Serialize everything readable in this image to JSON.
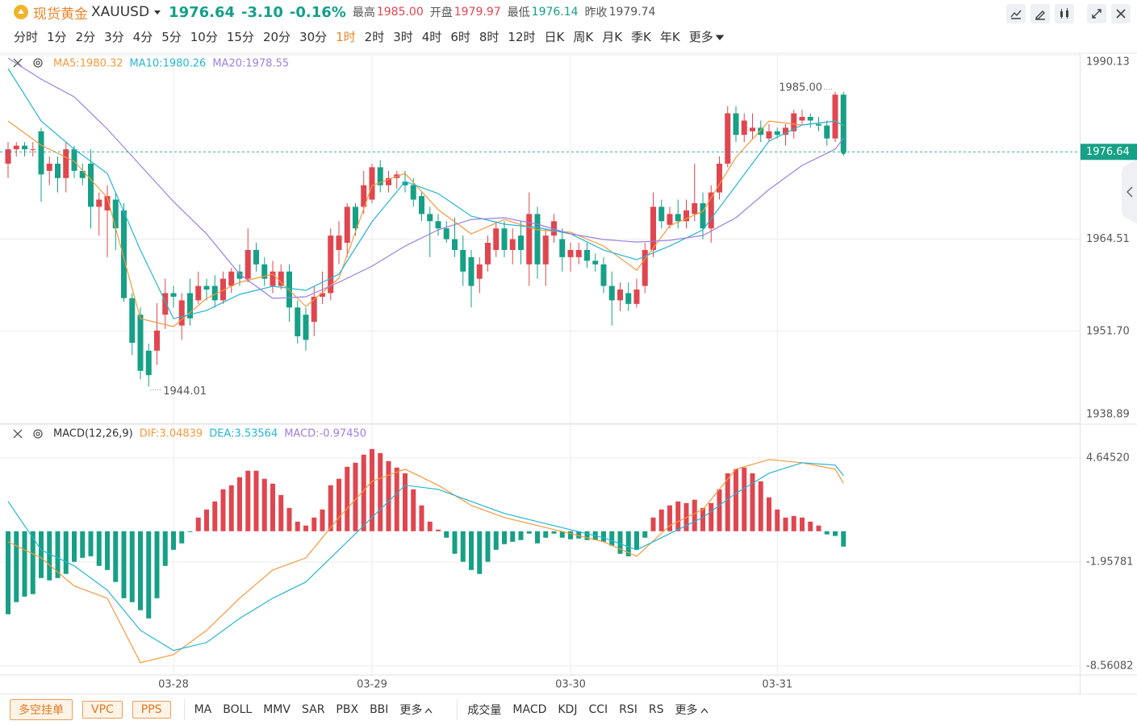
{
  "header": {
    "symbol_name": "现货黄金",
    "symbol": "XAUUSD",
    "price": "1976.64",
    "change": "-3.10",
    "change_pct": "-0.16%",
    "high_label": "最高",
    "high": "1985.00",
    "open_label": "开盘",
    "open": "1979.97",
    "low_label": "最低",
    "low": "1976.14",
    "prev_label": "昨收",
    "prev": "1979.74"
  },
  "periods": [
    "分时",
    "1分",
    "2分",
    "3分",
    "4分",
    "5分",
    "10分",
    "15分",
    "20分",
    "30分",
    "1时",
    "2时",
    "3时",
    "4时",
    "6时",
    "8时",
    "12时",
    "日K",
    "周K",
    "月K",
    "季K",
    "年K"
  ],
  "periods_more": "更多",
  "active_period_index": 10,
  "toolbar": {
    "buttons": [
      "多空挂单",
      "VPC",
      "PPS"
    ],
    "main_indicators": [
      "MA",
      "BOLL",
      "MMV",
      "SAR",
      "PBX",
      "BBI"
    ],
    "main_more": "更多",
    "sub_indicators": [
      "成交量",
      "MACD",
      "KDJ",
      "CCI",
      "RSI",
      "RS"
    ],
    "sub_more": "更多"
  },
  "chart_data": [
    {
      "type": "candlestick",
      "up_color": "#e0464f",
      "down_color": "#16a086",
      "ylim": [
        1938.89,
        1990.13
      ],
      "yticks": [
        1938.89,
        {
          "value": 1951.7,
          "label": "1951.70"
        },
        1964.51,
        1990.13
      ],
      "open": [
        1975,
        1977,
        1977.5,
        1977,
        1979.5,
        1974,
        1975,
        1973,
        1977,
        1974,
        1975,
        1969,
        1968.5,
        1970,
        1968.5,
        1956.3,
        1954,
        1949,
        1949,
        1954,
        1957,
        1952.5,
        1957,
        1956,
        1958,
        1958,
        1956,
        1958,
        1960,
        1959,
        1963,
        1961,
        1958,
        1958,
        1960,
        1955,
        1954,
        1953,
        1956.5,
        1957,
        1963,
        1964,
        1969,
        1969,
        1970,
        1974.5,
        1972,
        1973,
        1972.5,
        1972,
        1970.5,
        1968,
        1967,
        1966,
        1964.5,
        1963,
        1962,
        1959,
        1961,
        1963,
        1966,
        1963,
        1965,
        1961,
        1968,
        1961,
        1965,
        1964.5,
        1962,
        1962,
        1963,
        1961.5,
        1961,
        1958,
        1956,
        1957,
        1955.5,
        1958,
        1963,
        1969,
        1966.5,
        1968,
        1967,
        1968,
        1969.5,
        1966,
        1971,
        1975,
        1982,
        1979,
        1979.5,
        1980,
        1978.5,
        1979.5,
        1979,
        1979.5,
        1981,
        1981.5,
        1980.5,
        1980.3,
        1978.5,
        1984.6
      ],
      "high": [
        1978,
        1978,
        1978,
        1978,
        1980,
        1976,
        1976,
        1978,
        1977.5,
        1975,
        1977,
        1971,
        1972,
        1971,
        1969.5,
        1957,
        1955,
        1950,
        1955.6,
        1959,
        1958,
        1957,
        1959,
        1960,
        1959,
        1959.5,
        1960,
        1960.5,
        1961,
        1966,
        1964,
        1962,
        1961.5,
        1961,
        1961,
        1956,
        1955,
        1958,
        1960,
        1966,
        1967,
        1969.5,
        1969.5,
        1974,
        1975,
        1975.5,
        1974,
        1974,
        1974,
        1973,
        1971,
        1969,
        1968,
        1967,
        1967.5,
        1965,
        1963,
        1962,
        1965,
        1967,
        1967,
        1966,
        1967,
        1971,
        1969,
        1966,
        1968,
        1966,
        1964,
        1964,
        1964,
        1962.5,
        1962,
        1960,
        1958.5,
        1958.5,
        1959,
        1964,
        1971,
        1970,
        1969,
        1970,
        1970,
        1975,
        1971,
        1972,
        1976,
        1983,
        1983,
        1982,
        1982,
        1981,
        1980.5,
        1980,
        1980.5,
        1982.5,
        1982.5,
        1982,
        1981.5,
        1981,
        1985,
        1985
      ],
      "low": [
        1973,
        1976,
        1976,
        1976,
        1969.7,
        1972,
        1971,
        1971,
        1973,
        1972,
        1966,
        1965,
        1962,
        1963,
        1955.8,
        1948.4,
        1945,
        1944.01,
        1947,
        1952,
        1955,
        1950.5,
        1952.5,
        1955.5,
        1956,
        1955,
        1955.5,
        1957,
        1958,
        1958.5,
        1960,
        1958,
        1957,
        1957.5,
        1953,
        1950,
        1949,
        1951,
        1955.5,
        1956,
        1961,
        1962,
        1965,
        1968,
        1969.5,
        1971,
        1971,
        1971.5,
        1971,
        1969,
        1967,
        1962,
        1965,
        1964,
        1962,
        1958,
        1955,
        1957,
        1960,
        1962,
        1962,
        1961,
        1961,
        1958,
        1959,
        1958,
        1964,
        1960,
        1960,
        1961,
        1960.5,
        1960,
        1957,
        1952.5,
        1954.5,
        1954.5,
        1955,
        1957,
        1962,
        1966,
        1966,
        1966,
        1966,
        1967,
        1964.5,
        1964,
        1970,
        1974.5,
        1978,
        1978,
        1978.5,
        1978,
        1978,
        1978.5,
        1977.5,
        1978.5,
        1980.5,
        1980,
        1979.5,
        1977.5,
        1978,
        1976.14
      ],
      "close": [
        1977,
        1977.5,
        1977,
        1977,
        1973.5,
        1975,
        1973,
        1977,
        1974,
        1973,
        1969,
        1970,
        1970.5,
        1966,
        1956.3,
        1950.1,
        1946.2,
        1945.6,
        1951.8,
        1957,
        1956.5,
        1956,
        1953.5,
        1958,
        1957.5,
        1956,
        1959,
        1960,
        1959,
        1963,
        1961,
        1959,
        1960,
        1960,
        1955,
        1951,
        1950.5,
        1956.5,
        1957,
        1965,
        1965,
        1969,
        1966,
        1972,
        1974.5,
        1972,
        1973,
        1973.5,
        1972,
        1970,
        1968,
        1967,
        1966,
        1964.5,
        1963,
        1960,
        1958,
        1961,
        1964,
        1966,
        1963,
        1964.5,
        1963,
        1968,
        1961,
        1965,
        1967,
        1962,
        1963,
        1963,
        1961.5,
        1961,
        1958,
        1956,
        1957.5,
        1955.5,
        1957.5,
        1963,
        1969,
        1967,
        1968,
        1967,
        1968.5,
        1969.5,
        1966,
        1971,
        1975,
        1982,
        1979,
        1981,
        1980,
        1979,
        1979.5,
        1979,
        1980,
        1982,
        1981.5,
        1981,
        1980.3,
        1978.5,
        1984.6,
        1976.64
      ],
      "series": [
        {
          "name": "MA5:1980.32",
          "color": "#f5993d",
          "x": [
            0,
            4,
            8,
            12,
            16,
            20,
            24,
            28,
            32,
            36,
            40,
            44,
            48,
            52,
            56,
            60,
            64,
            68,
            72,
            76,
            80,
            84,
            88,
            92,
            96,
            100,
            101
          ],
          "values": [
            1980.93,
            1977.57,
            1975.32,
            1970.28,
            1953.46,
            1952.34,
            1956.27,
            1958.51,
            1959.63,
            1955.15,
            1959.07,
            1971.96,
            1973.64,
            1968.6,
            1965.24,
            1967.25,
            1965.8,
            1965.46,
            1963.55,
            1960.19,
            1966.36,
            1968.37,
            1975.89,
            1980.93,
            1980.37,
            1980.93,
            1980.32
          ]
        },
        {
          "name": "MA10:1980.26",
          "color": "#26b5d4",
          "x": [
            0,
            4,
            8,
            12,
            16,
            20,
            24,
            28,
            32,
            36,
            40,
            44,
            48,
            52,
            56,
            60,
            64,
            68,
            72,
            76,
            80,
            84,
            88,
            92,
            96,
            100,
            101
          ],
          "values": [
            1988.22,
            1980.93,
            1977.01,
            1973.64,
            1962.99,
            1953.46,
            1954.59,
            1956.83,
            1957.95,
            1957.39,
            1959.63,
            1966.92,
            1972.52,
            1970.84,
            1967.7,
            1966.58,
            1966.13,
            1965.24,
            1962.99,
            1961.65,
            1963.55,
            1965.8,
            1971.96,
            1978.13,
            1980.37,
            1980.93,
            1980.26
          ]
        },
        {
          "name": "MA20:1978.55",
          "color": "#9d7fe0",
          "x": [
            0,
            4,
            8,
            12,
            16,
            20,
            24,
            28,
            32,
            36,
            40,
            44,
            48,
            52,
            56,
            60,
            64,
            68,
            72,
            76,
            80,
            84,
            88,
            92,
            96,
            100,
            101
          ],
          "values": [
            1989.67,
            1986.76,
            1984.29,
            1979.81,
            1974.76,
            1969.72,
            1965.24,
            1959.63,
            1956.27,
            1956.49,
            1958.51,
            1960.75,
            1963.55,
            1965.8,
            1967.25,
            1967.48,
            1966.58,
            1965.24,
            1964.45,
            1964.11,
            1964.34,
            1965.01,
            1967.48,
            1971.4,
            1974.76,
            1977.01,
            1978.55
          ]
        }
      ],
      "last_price": {
        "value": 1976.64,
        "label": "1976.64",
        "color": "#16a086"
      },
      "high_label": {
        "value": 1985,
        "label": "1985.00"
      },
      "low_label": {
        "value": 1944.01,
        "label": "1944.01"
      }
    },
    {
      "type": "macd",
      "title": "MACD(12,26,9)",
      "up_color": "#e0464f",
      "down_color": "#16a086",
      "categories": [
        null,
        null,
        null,
        null,
        null,
        null,
        null,
        null,
        null,
        null,
        null,
        null,
        null,
        null,
        null,
        null,
        null,
        null,
        null,
        null,
        "03-28",
        null,
        null,
        null,
        null,
        null,
        null,
        null,
        null,
        null,
        null,
        null,
        null,
        null,
        null,
        null,
        null,
        null,
        null,
        null,
        null,
        null,
        null,
        null,
        "03-29",
        null,
        null,
        null,
        null,
        null,
        null,
        null,
        null,
        null,
        null,
        null,
        null,
        null,
        null,
        null,
        null,
        null,
        null,
        null,
        null,
        null,
        null,
        null,
        "03-30",
        null,
        null,
        null,
        null,
        null,
        null,
        null,
        null,
        null,
        null,
        null,
        null,
        null,
        null,
        null,
        null,
        null,
        null,
        null,
        null,
        null,
        null,
        null,
        null,
        "03-31",
        null,
        null,
        null,
        null,
        null,
        null,
        null,
        null
      ],
      "ylim": [
        -9.124,
        6.743
      ],
      "yticks": [
        {
          "value": -8.56082,
          "label": "-8.56082"
        },
        {
          "value": -1.95781,
          "label": "-1.95781"
        },
        {
          "value": 4.6452,
          "label": "4.64520"
        }
      ],
      "histogram": {
        "name": "MACD:-0.97450",
        "color": "#9d7fe0",
        "values": [
          -5.27,
          -4.5,
          -4.15,
          -3.99,
          -2.97,
          -3.12,
          -2.97,
          -2.71,
          -1.94,
          -1.69,
          -1.59,
          -2.2,
          -2.46,
          -3.22,
          -4.25,
          -4.5,
          -5.01,
          -5.53,
          -4.25,
          -2.2,
          -1.18,
          -0.77,
          -0.05,
          0.87,
          1.38,
          1.89,
          2.66,
          2.92,
          3.43,
          3.84,
          3.84,
          3.33,
          3.02,
          2.3,
          1.48,
          0.61,
          0.36,
          0.87,
          1.38,
          2.92,
          3.33,
          4.09,
          4.35,
          4.86,
          5.22,
          4.96,
          4.45,
          4.04,
          3.68,
          2.66,
          1.64,
          0.61,
          0.1,
          -0.41,
          -1.43,
          -1.94,
          -2.46,
          -2.71,
          -1.94,
          -1.18,
          -0.82,
          -0.67,
          -0.56,
          -0.15,
          -0.77,
          -0.41,
          -0.15,
          -0.41,
          -0.51,
          -0.46,
          -0.56,
          -0.56,
          -0.67,
          -0.92,
          -1.43,
          -1.59,
          -1.18,
          -0.41,
          0.87,
          1.38,
          1.64,
          1.89,
          1.79,
          2.0,
          1.48,
          1.79,
          2.66,
          3.68,
          3.94,
          4.04,
          3.68,
          3.17,
          2.15,
          1.38,
          0.87,
          0.97,
          0.87,
          0.61,
          0.36,
          -0.2,
          -0.3,
          -0.9745
        ]
      },
      "series": [
        {
          "name": "DIF:3.04839",
          "color": "#f5993d",
          "x": [
            0,
            4,
            8,
            12,
            16,
            20,
            24,
            28,
            32,
            36,
            40,
            44,
            48,
            52,
            56,
            60,
            64,
            68,
            72,
            76,
            80,
            84,
            88,
            92,
            96,
            100,
            101
          ],
          "values": [
            -0.67,
            -1.69,
            -3.48,
            -4.25,
            -8.34,
            -7.83,
            -6.29,
            -4.25,
            -2.46,
            -1.69,
            0.87,
            3.17,
            3.94,
            2.92,
            1.64,
            0.87,
            0.36,
            -0.15,
            -0.67,
            -1.59,
            0.36,
            1.38,
            3.94,
            4.55,
            4.35,
            3.94,
            3.04839
          ]
        },
        {
          "name": "DEA:3.53564",
          "color": "#26b5d4",
          "x": [
            0,
            4,
            8,
            12,
            16,
            20,
            24,
            28,
            32,
            36,
            40,
            44,
            48,
            52,
            56,
            60,
            64,
            68,
            72,
            76,
            80,
            84,
            88,
            92,
            96,
            100,
            101
          ],
          "values": [
            1.89,
            -1.18,
            -2.2,
            -3.74,
            -6.29,
            -7.57,
            -7.06,
            -5.53,
            -4.25,
            -3.22,
            -1.18,
            0.87,
            2.92,
            2.66,
            1.89,
            1.13,
            0.61,
            0.1,
            -0.41,
            -1.18,
            -0.15,
            0.87,
            2.41,
            3.68,
            4.35,
            4.2,
            3.53564
          ]
        }
      ]
    }
  ]
}
